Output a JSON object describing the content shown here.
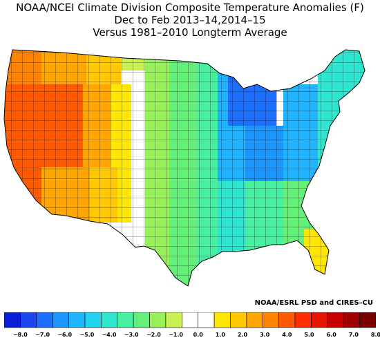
{
  "title": {
    "line1": "NOAA/NCEI Climate Division Composite Temperature Anomalies (F)",
    "line2": "Dec to Feb  2013–14,2014–15",
    "line3": "Versus 1981–2010 Longterm Average"
  },
  "credit": "NOAA/ESRL PSD and CIRES–CU",
  "map": {
    "region": "Contiguous United States climate divisions",
    "anomaly_pattern": [
      {
        "area": "California / Nevada / Great Basin",
        "anomaly_f": 5.0
      },
      {
        "area": "Pacific Northwest / Idaho / Utah",
        "anomaly_f": 4.0
      },
      {
        "area": "Arizona / western New Mexico",
        "anomaly_f": 3.0
      },
      {
        "area": "Montana / Wyoming / Colorado",
        "anomaly_f": 1.0
      },
      {
        "area": "eastern Wyoming / eastern Colorado",
        "anomaly_f": 0.0
      },
      {
        "area": "Dakotas / Nebraska / Kansas / Texas",
        "anomaly_f": -2.0
      },
      {
        "area": "Minnesota / Iowa / Missouri",
        "anomaly_f": -4.0
      },
      {
        "area": "Wisconsin / Michigan / Great Lakes",
        "anomaly_f": -6.0
      },
      {
        "area": "Ohio Valley / Northeast",
        "anomaly_f": -5.0
      },
      {
        "area": "Southeast / Gulf Coast",
        "anomaly_f": -2.5
      },
      {
        "area": "New England",
        "anomaly_f": -3.0
      },
      {
        "area": "Florida",
        "anomaly_f": 1.5
      }
    ]
  },
  "legend": {
    "ticks": [
      "−8.0",
      "−7.0",
      "−6.0",
      "−5.0",
      "−4.0",
      "−3.0",
      "−2.0",
      "−1.0",
      "0.0",
      "1.0",
      "2.0",
      "3.0",
      "4.0",
      "5.0",
      "6.0",
      "7.0",
      "8.0"
    ],
    "colors": [
      "#0a1ed8",
      "#1e46f0",
      "#1e6eff",
      "#1e96ff",
      "#1eb4ff",
      "#1ed2f0",
      "#2ee6d0",
      "#46f0a0",
      "#64f078",
      "#96f05a",
      "#c8f050",
      "#ffffff",
      "#ffffff",
      "#ffe600",
      "#ffc800",
      "#ffa500",
      "#ff8200",
      "#ff5a00",
      "#ff2d00",
      "#e61400",
      "#c80000",
      "#a00000",
      "#780000"
    ]
  }
}
